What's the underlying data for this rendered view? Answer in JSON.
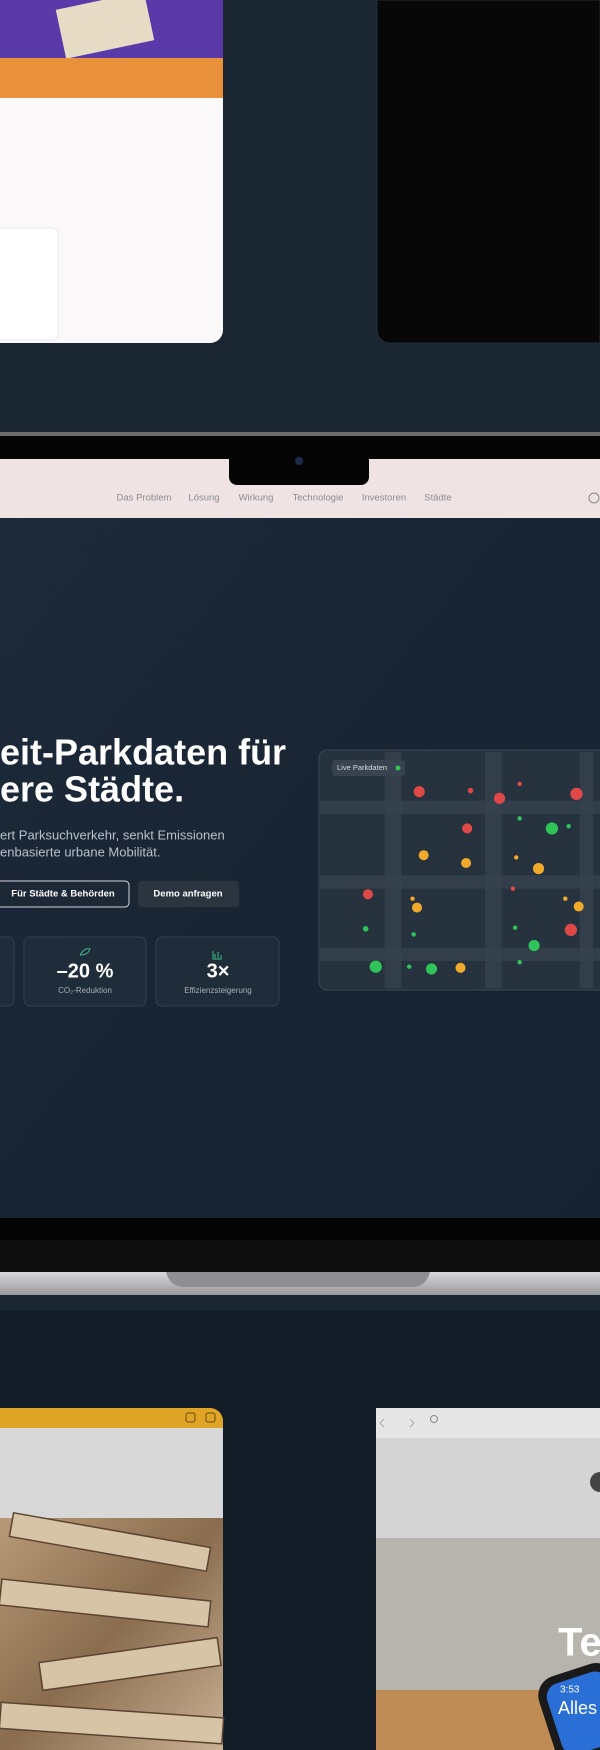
{
  "nav": {
    "items": [
      "Das Problem",
      "Lösung",
      "Wirkung",
      "Technologie",
      "Investoren",
      "Städte"
    ]
  },
  "hero": {
    "title_lines": [
      "eit-Parkdaten für",
      "ere Städte."
    ],
    "subtitle_lines": [
      "ert Parksuchverkehr, senkt Emissionen",
      "enbasierte urbane Mobilität."
    ],
    "buttons": [
      "Für Städte & Behörden",
      "Demo anfragen"
    ],
    "stats": [
      {
        "value": "–20 %",
        "label": "CO₂-Reduktion"
      },
      {
        "value": "3×",
        "label": "Effizienzsteigerung"
      }
    ]
  },
  "map": {
    "label": "Live Parkdaten"
  },
  "bottom": {
    "right_headline": "Te",
    "watch_time": "3:53",
    "watch_label": "Alles"
  }
}
